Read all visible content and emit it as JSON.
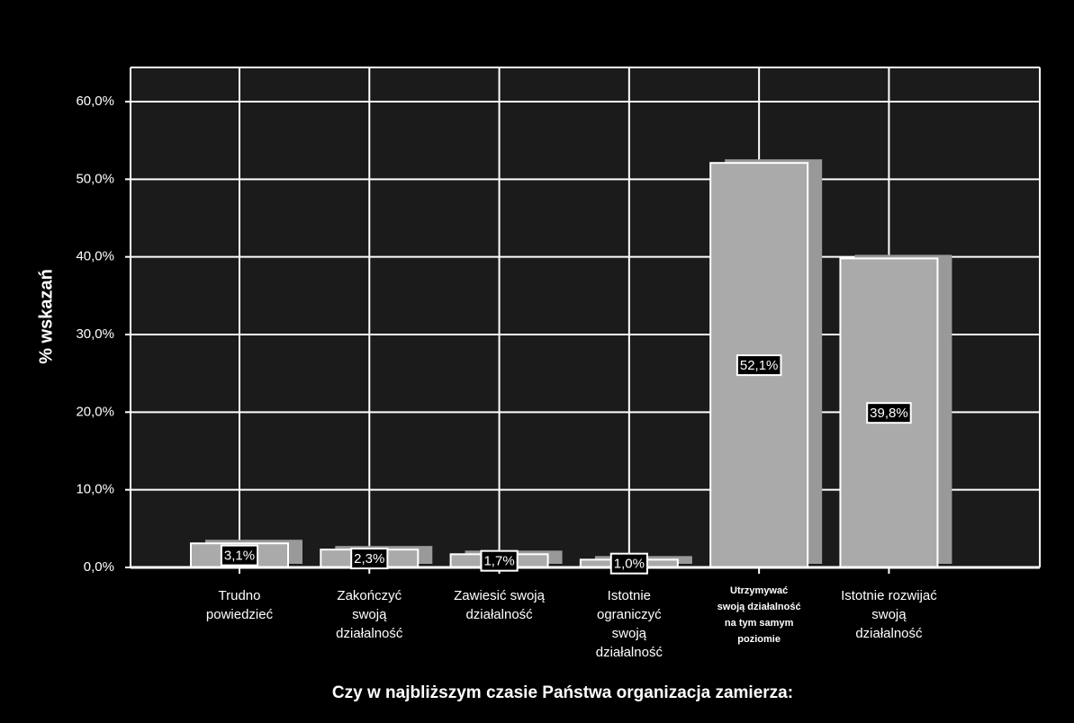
{
  "chart_data": {
    "type": "bar",
    "x_label": "Czy w najbliższym czasie Państwa organizacja zamierza:",
    "y_label": "% wskazań",
    "categories": [
      "Trudno\npowiedzieć",
      "Zakończyć\nswoją\ndziałalność",
      "Zawiesić swoją\ndziałalność",
      "Istotnie\nograniczyć\nswoją\ndziałalność",
      "Utrzymywać\nswoją działalność\nna tym samym\npoziomie",
      "Istotnie rozwijać\nswoją\ndziałalność"
    ],
    "values": [
      3.1,
      2.3,
      1.7,
      1.0,
      52.1,
      39.8
    ],
    "value_labels": [
      "3,1%",
      "2,3%",
      "1,7%",
      "1,0%",
      "52,1%",
      "39,8%"
    ],
    "color": "#aaaaaa",
    "ylim": [
      0,
      64.4
    ],
    "yticks": [
      {
        "value": 0,
        "label": "0,0%"
      },
      {
        "value": 10,
        "label": "10,0%"
      },
      {
        "value": 20,
        "label": "20,0%"
      },
      {
        "value": 30,
        "label": "30,0%"
      },
      {
        "value": 40,
        "label": "40,0%"
      },
      {
        "value": 50,
        "label": "50,0%"
      },
      {
        "value": 60,
        "label": "60,0%"
      }
    ],
    "grid": true
  }
}
